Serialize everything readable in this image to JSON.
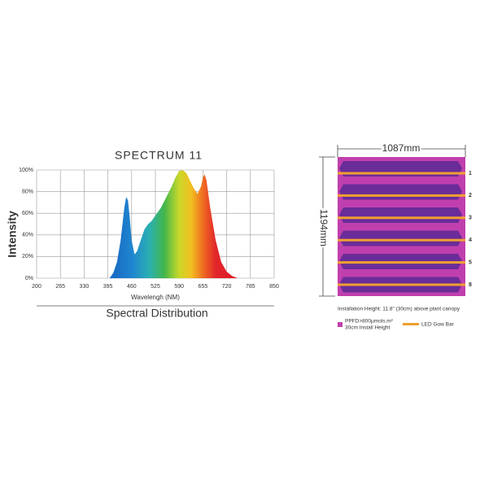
{
  "chart_data": {
    "type": "area",
    "title": "SPECTRUM 11",
    "ylabel": "Intensity",
    "xlabel": "Wavelengh (NM)",
    "footer": "Spectral Distribution",
    "x": [
      400,
      410,
      420,
      430,
      440,
      445,
      450,
      455,
      460,
      468,
      475,
      485,
      495,
      505,
      515,
      525,
      540,
      555,
      570,
      580,
      590,
      600,
      610,
      620,
      630,
      640,
      650,
      655,
      660,
      665,
      675,
      690,
      705,
      720,
      735,
      750
    ],
    "values": [
      0,
      5,
      15,
      35,
      65,
      75,
      72,
      55,
      35,
      22,
      25,
      35,
      45,
      50,
      53,
      58,
      65,
      75,
      85,
      93,
      99,
      100,
      97,
      90,
      83,
      78,
      85,
      93,
      96,
      90,
      65,
      35,
      15,
      6,
      2,
      0
    ],
    "xlim": [
      200,
      850
    ],
    "xticks": [
      200,
      265,
      330,
      395,
      460,
      525,
      590,
      655,
      720,
      785,
      850
    ],
    "ylim": [
      0,
      100
    ],
    "yticks": [
      {
        "value": 0,
        "label": "0%"
      },
      {
        "value": 20,
        "label": "20%"
      },
      {
        "value": 40,
        "label": "40%"
      },
      {
        "value": 60,
        "label": "60%"
      },
      {
        "value": 80,
        "label": "80%"
      },
      {
        "value": 100,
        "label": "100%"
      }
    ],
    "grid": true
  },
  "diagram": {
    "width_label": "1087mm",
    "height_label": "1194mm",
    "bar_labels": [
      "1",
      "2",
      "3",
      "4",
      "5",
      "8"
    ],
    "caption": "Installation Height: 11.8\" (30cm) above plant canopy",
    "legend_ppfd": "PPFD>800μmols.m²",
    "legend_height": "30cm Install Height",
    "legend_bar": "LED Gow Bar"
  }
}
